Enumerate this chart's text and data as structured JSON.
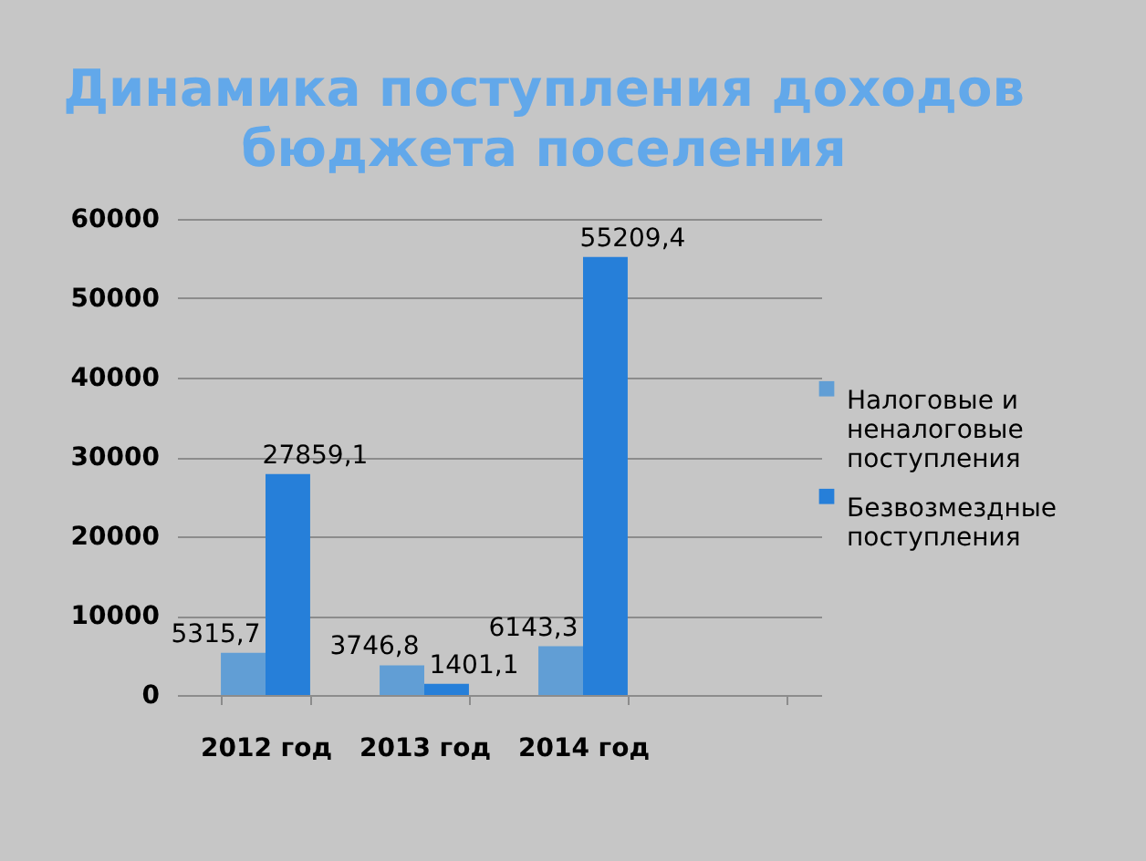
{
  "chart_data": {
    "type": "bar",
    "title": "Динамика поступления доходов бюджета поселения",
    "categories": [
      "2012 год",
      "2013 год",
      "2014 год",
      null
    ],
    "series": [
      {
        "name": "Налоговые и неналоговые поступления",
        "color": "#619ed5",
        "values": [
          5315.7,
          3746.8,
          6143.3,
          null
        ],
        "value_labels": [
          "5315,7",
          "3746,8",
          "6143,3",
          null
        ]
      },
      {
        "name": "Безвозмездные поступления",
        "color": "#267fd9",
        "values": [
          27859.1,
          1401.1,
          55209.4,
          null
        ],
        "value_labels": [
          "27859,1",
          "1401,1",
          "55209,4",
          null
        ]
      }
    ],
    "ylim": [
      0,
      60000
    ],
    "yticks": [
      0,
      10000,
      20000,
      30000,
      40000,
      50000,
      60000
    ],
    "grid": "y",
    "legend": "right"
  }
}
